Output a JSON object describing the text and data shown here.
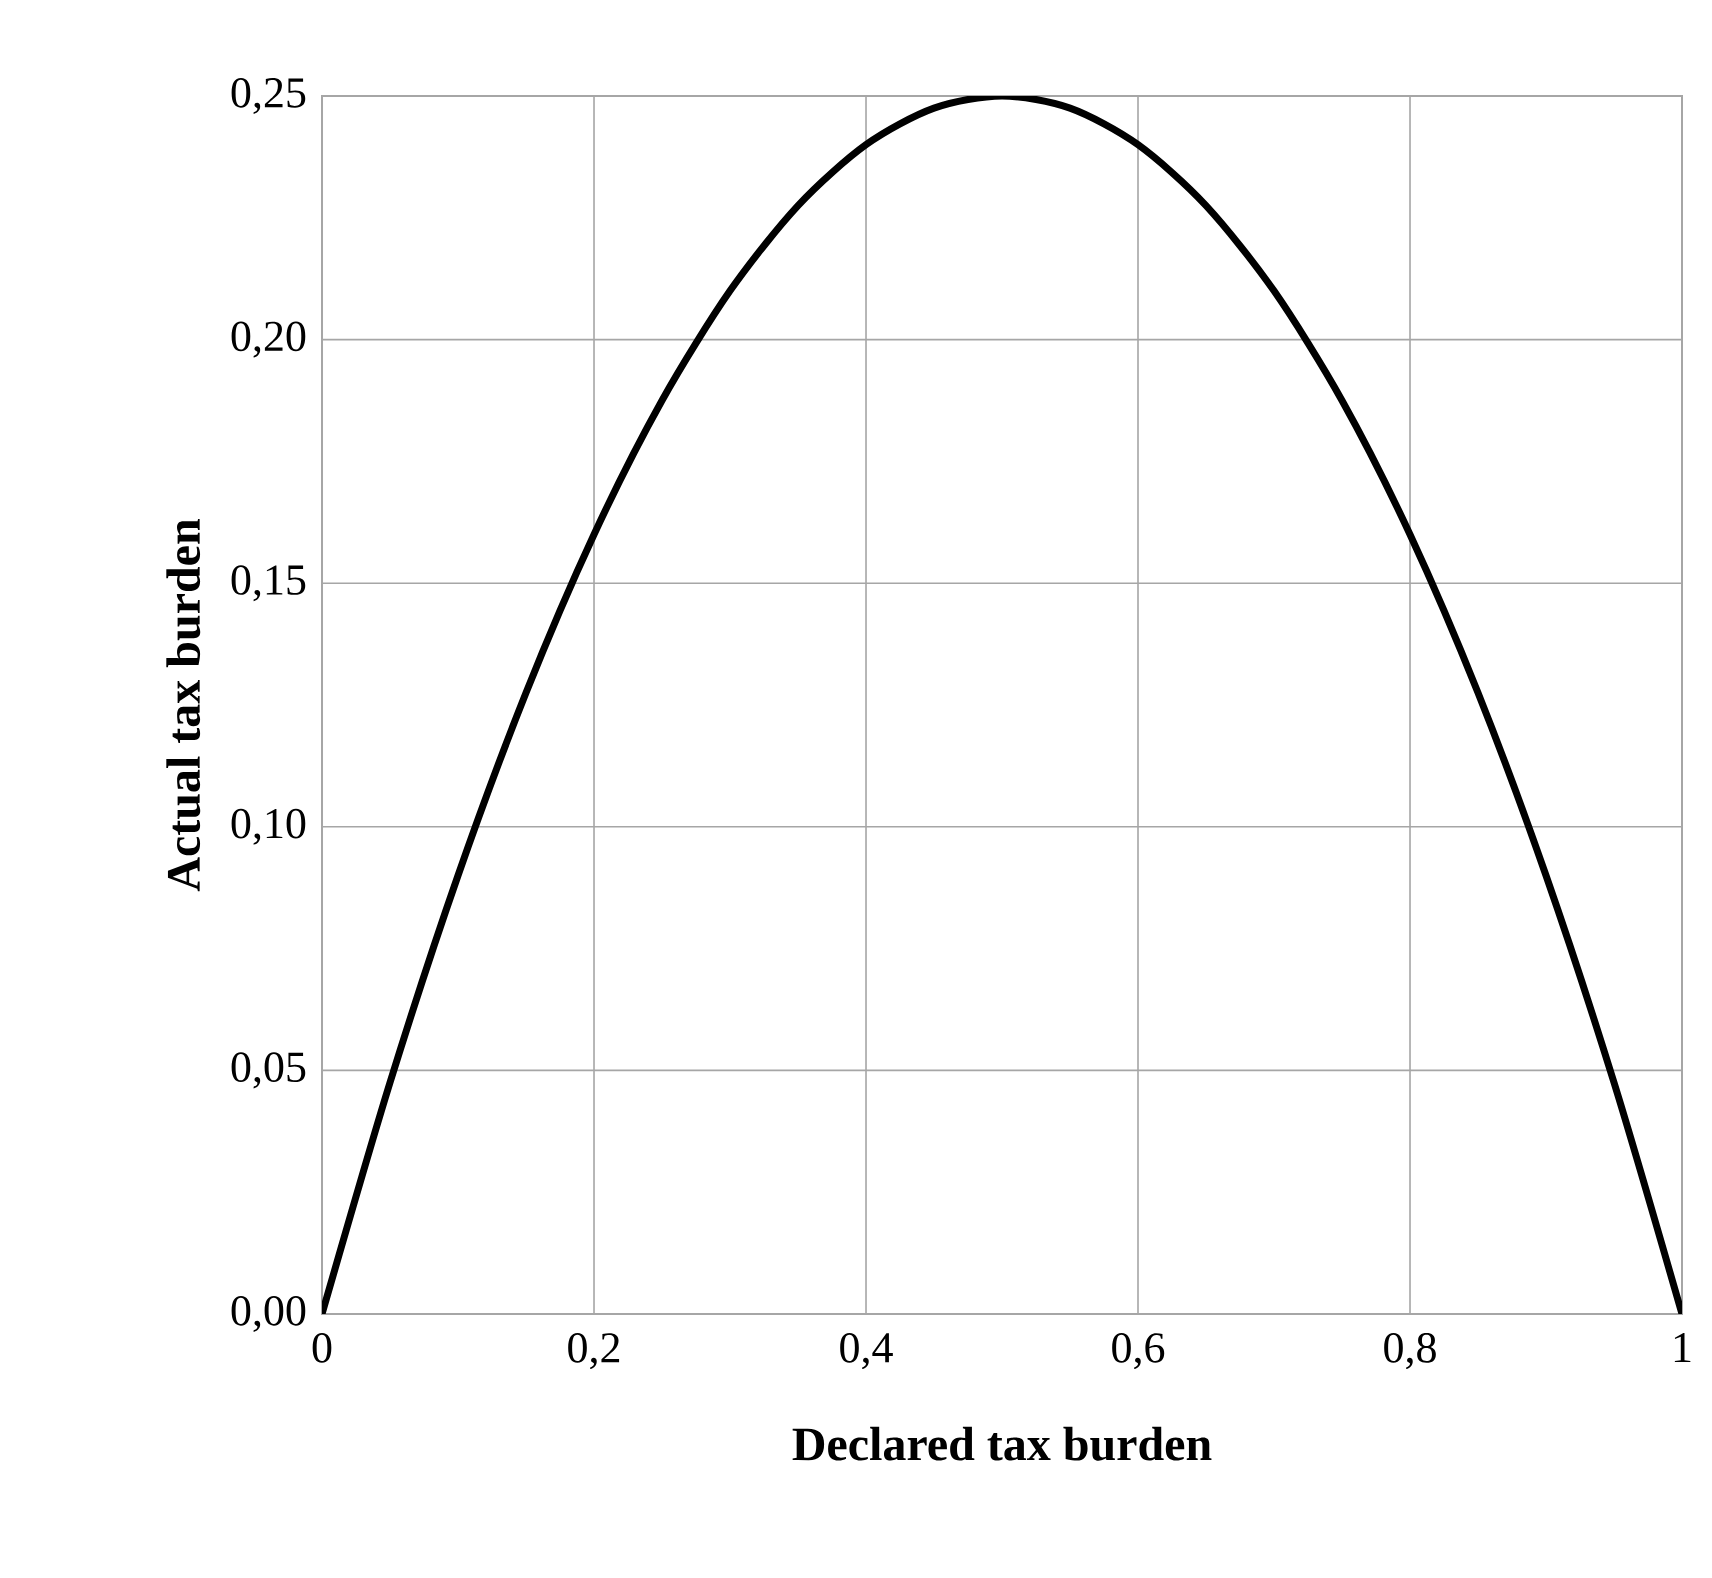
{
  "chart_data": {
    "type": "line",
    "xlabel": "Declared tax burden",
    "ylabel": "Actual tax burden",
    "x": [
      0,
      0.05,
      0.1,
      0.15,
      0.2,
      0.25,
      0.3,
      0.35,
      0.4,
      0.45,
      0.5,
      0.55,
      0.6,
      0.65,
      0.7,
      0.75,
      0.8,
      0.85,
      0.9,
      0.95,
      1
    ],
    "series": [
      {
        "color": "#000000",
        "values": [
          0,
          0.0475,
          0.09,
          0.1275,
          0.16,
          0.1875,
          0.21,
          0.2275,
          0.24,
          0.2475,
          0.25,
          0.2475,
          0.24,
          0.2275,
          0.21,
          0.1875,
          0.16,
          0.1275,
          0.09,
          0.0475,
          0
        ]
      }
    ],
    "xlim": [
      0,
      1
    ],
    "ylim": [
      0,
      0.25
    ],
    "xticks": [
      0,
      {
        "value": 0.2,
        "label": "0,2"
      },
      {
        "value": 0.4,
        "label": "0,4"
      },
      {
        "value": 0.6,
        "label": "0,6"
      },
      {
        "value": 0.8,
        "label": "0,8"
      },
      1
    ],
    "yticks": [
      {
        "value": 0,
        "label": "0,00"
      },
      {
        "value": 0.05,
        "label": "0,05"
      },
      {
        "value": 0.1,
        "label": "0,10"
      },
      {
        "value": 0.15,
        "label": "0,15"
      },
      {
        "value": 0.2,
        "label": "0,20"
      },
      {
        "value": 0.25,
        "label": "0,25"
      }
    ],
    "grid": true,
    "marker": "none",
    "line_style": "solid"
  }
}
